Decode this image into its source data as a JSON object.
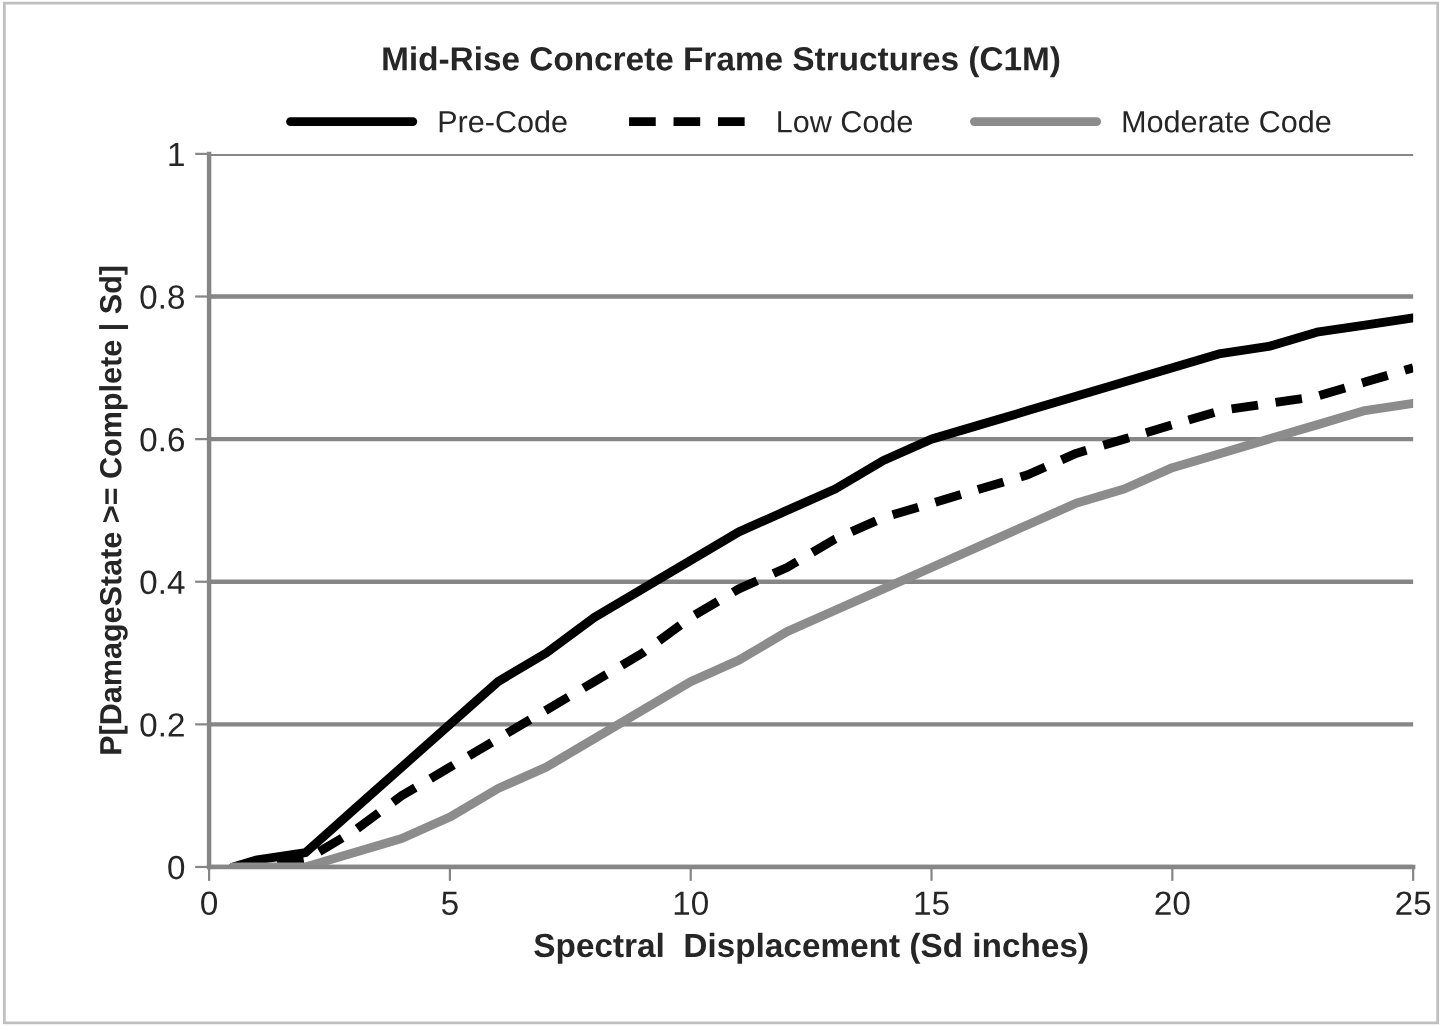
{
  "chart_data": {
    "type": "line",
    "title": "Mid-Rise Concrete Frame Structures (C1M)",
    "xlabel": "Spectral  Displacement (Sd inches)",
    "ylabel": "P[DamageState >= Complete | Sd]",
    "x": [
      0.5,
      1,
      2,
      3,
      4,
      5,
      6,
      7,
      8,
      9,
      10,
      11,
      12,
      13,
      14,
      15,
      16,
      17,
      18,
      19,
      20,
      21,
      22,
      23,
      24,
      25
    ],
    "series": [
      {
        "name": "Pre-Code",
        "color": "#000000",
        "line_style": "solid",
        "values": [
          0,
          0.01,
          0.02,
          0.08,
          0.14,
          0.2,
          0.26,
          0.3,
          0.35,
          0.39,
          0.43,
          0.47,
          0.5,
          0.53,
          0.57,
          0.6,
          0.62,
          0.64,
          0.66,
          0.68,
          0.7,
          0.72,
          0.73,
          0.75,
          0.76,
          0.77
        ]
      },
      {
        "name": "Low Code",
        "color": "#000000",
        "line_style": "dashed",
        "values": [
          0,
          0,
          0.01,
          0.05,
          0.1,
          0.14,
          0.18,
          0.22,
          0.26,
          0.3,
          0.35,
          0.39,
          0.42,
          0.46,
          0.49,
          0.51,
          0.53,
          0.55,
          0.58,
          0.6,
          0.62,
          0.64,
          0.65,
          0.66,
          0.68,
          0.7
        ]
      },
      {
        "name": "Moderate Code",
        "color": "#8c8c8c",
        "line_style": "solid",
        "values": [
          0,
          0,
          0,
          0.02,
          0.04,
          0.07,
          0.11,
          0.14,
          0.18,
          0.22,
          0.26,
          0.29,
          0.33,
          0.36,
          0.39,
          0.42,
          0.45,
          0.48,
          0.51,
          0.53,
          0.56,
          0.58,
          0.6,
          0.62,
          0.64,
          0.65
        ]
      }
    ],
    "xlim": [
      0,
      25
    ],
    "xticks": [
      0,
      5,
      10,
      15,
      20,
      25
    ],
    "ylim": [
      0,
      1
    ],
    "yticks": [
      0,
      0.2,
      0.4,
      0.6,
      0.8,
      1
    ],
    "grid": "y",
    "legend": "top",
    "marker": "none"
  }
}
